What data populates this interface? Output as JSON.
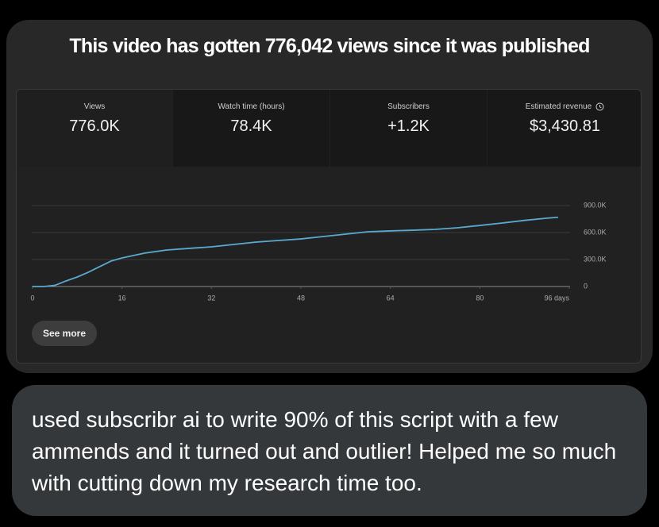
{
  "header": {
    "title": "This video has gotten 776,042 views since it was published"
  },
  "stats": [
    {
      "label": "Views",
      "value": "776.0K"
    },
    {
      "label": "Watch time (hours)",
      "value": "78.4K"
    },
    {
      "label": "Subscribers",
      "value": "+1.2K"
    },
    {
      "label": "Estimated revenue",
      "value": "$3,430.81"
    }
  ],
  "chart_data": {
    "type": "line",
    "x": [
      0,
      2,
      4,
      6,
      8,
      10,
      12,
      14,
      16,
      20,
      24,
      28,
      32,
      36,
      40,
      44,
      48,
      52,
      56,
      60,
      64,
      68,
      72,
      76,
      80,
      84,
      88,
      92,
      94
    ],
    "values": [
      0,
      0,
      13000,
      62000,
      106000,
      159000,
      221000,
      282000,
      318000,
      371000,
      406000,
      424000,
      441000,
      468000,
      494000,
      512000,
      529000,
      556000,
      582000,
      609000,
      618000,
      626000,
      635000,
      653000,
      679000,
      706000,
      735000,
      760000,
      770000
    ],
    "color": "#5aa9cf",
    "xlim": [
      0,
      96
    ],
    "xticks": [
      0,
      16,
      32,
      48,
      64,
      80,
      {
        "value": 96,
        "label": "96 days"
      }
    ],
    "ylim": [
      0,
      900000
    ],
    "yticks": [
      {
        "value": 0,
        "label": "0"
      },
      {
        "value": 300000,
        "label": "300.0K"
      },
      {
        "value": 600000,
        "label": "600.0K"
      },
      {
        "value": 900000,
        "label": "900.0K"
      }
    ],
    "grid": true
  },
  "button": {
    "label": "See more"
  },
  "comment": {
    "text": "used subscribr ai to write 90% of this script with a few ammends and it turned out and outlier! Helped me so much with cutting down my research time too."
  }
}
